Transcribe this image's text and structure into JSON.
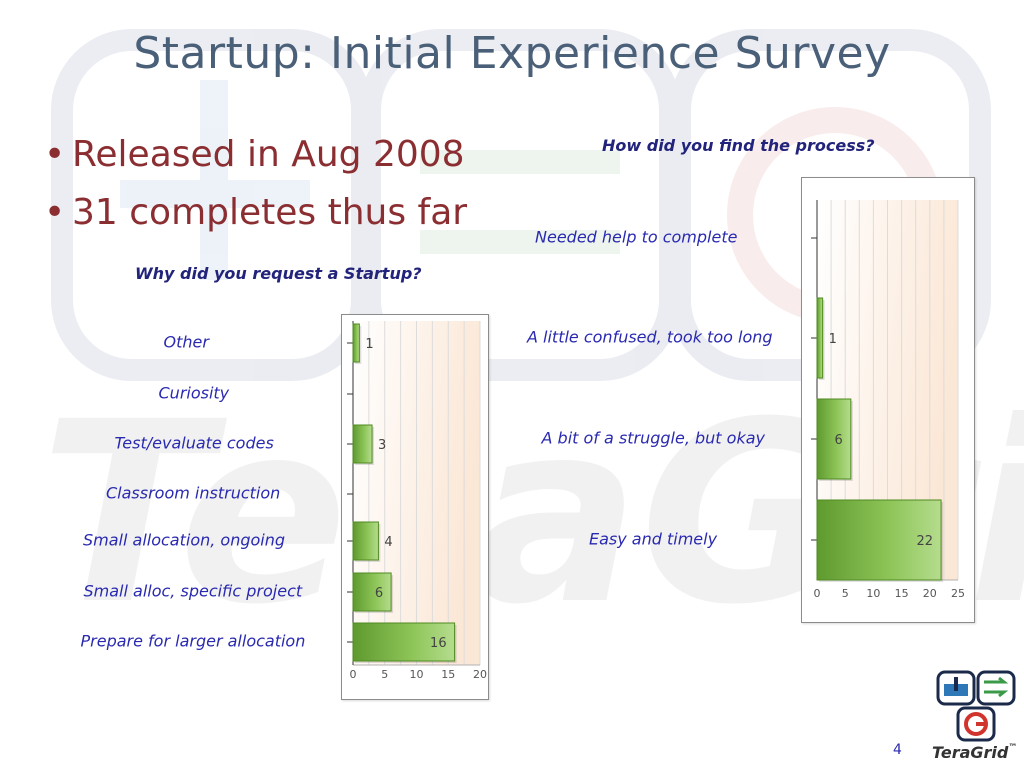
{
  "slide": {
    "title": "Startup: Initial Experience Survey",
    "bullets": [
      "Released in Aug 2008",
      "31 completes thus far"
    ],
    "page_number": "4",
    "logo_text": "TeraGrid",
    "logo_tm": "™"
  },
  "chart_data": [
    {
      "type": "bar",
      "orientation": "horizontal",
      "title": "Why did you request a Startup?",
      "categories": [
        "Other",
        "Curiosity",
        "Test/evaluate codes",
        "Classroom instruction",
        "Small allocation, ongoing",
        "Small alloc, specific project",
        "Prepare for larger allocation"
      ],
      "values": [
        1,
        0,
        3,
        0,
        4,
        6,
        16
      ],
      "value_labels": [
        "1",
        "",
        "3",
        "",
        "4",
        "6",
        "16"
      ],
      "xlim": [
        0,
        20
      ],
      "xticks": [
        "0",
        "5",
        "10",
        "15",
        "20"
      ],
      "grid": true,
      "bar_color": "#8fc65a"
    },
    {
      "type": "bar",
      "orientation": "horizontal",
      "title": "How did you find the process?",
      "categories": [
        "Needed help to complete",
        "A little confused, took too long",
        "A bit of a struggle, but okay",
        "Easy and timely"
      ],
      "values": [
        0,
        1,
        6,
        22
      ],
      "value_labels": [
        "",
        "1",
        "6",
        "22"
      ],
      "xlim": [
        0,
        25
      ],
      "xticks": [
        "0",
        "5",
        "10",
        "15",
        "20",
        "25"
      ],
      "grid": true,
      "bar_color": "#8fc65a"
    }
  ]
}
